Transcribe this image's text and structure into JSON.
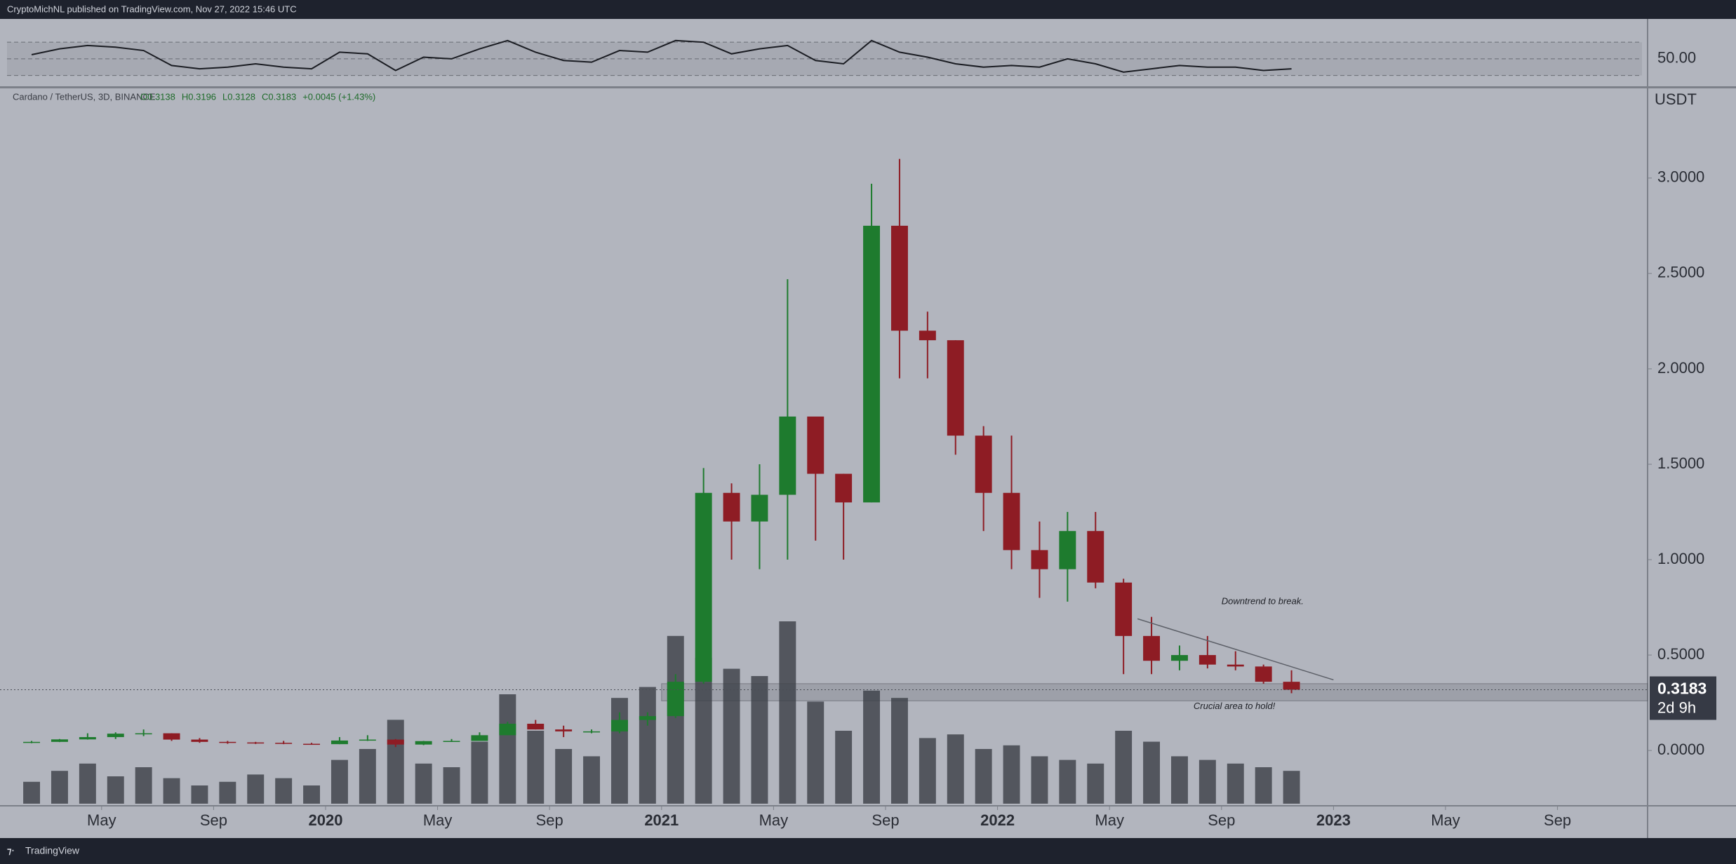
{
  "chart_data": {
    "type": "candlestick",
    "header": "CryptoMichNL published on TradingView.com, Nov 27, 2022 15:46 UTC",
    "title": "Cardano / TetherUS, 3D, BINANCE",
    "ohlc_legend": [
      "O0.3138",
      "H0.3196",
      "L0.3128",
      "C0.3183",
      "+0.0045 (+1.43%)"
    ],
    "y_unit": "USDT",
    "footer": "TradingView",
    "x": [
      "2019-02",
      "2019-03",
      "2019-04",
      "2019-05",
      "2019-06",
      "2019-07",
      "2019-08",
      "2019-09",
      "2019-10",
      "2019-11",
      "2019-12",
      "2020-01",
      "2020-02",
      "2020-03",
      "2020-04",
      "2020-05",
      "2020-06",
      "2020-07",
      "2020-08",
      "2020-09",
      "2020-10",
      "2020-11",
      "2020-12",
      "2021-01",
      "2021-02",
      "2021-03",
      "2021-04",
      "2021-05",
      "2021-06",
      "2021-07",
      "2021-08",
      "2021-09",
      "2021-10",
      "2021-11",
      "2021-12",
      "2022-01",
      "2022-02",
      "2022-03",
      "2022-04",
      "2022-05",
      "2022-06",
      "2022-07",
      "2022-08",
      "2022-09",
      "2022-10",
      "2022-11"
    ],
    "open": [
      0.04,
      0.045,
      0.058,
      0.07,
      0.088,
      0.09,
      0.057,
      0.045,
      0.042,
      0.04,
      0.035,
      0.033,
      0.052,
      0.057,
      0.031,
      0.049,
      0.05,
      0.08,
      0.14,
      0.11,
      0.1,
      0.1,
      0.16,
      0.18,
      0.36,
      1.35,
      1.2,
      1.34,
      1.75,
      1.45,
      1.3,
      2.75,
      2.2,
      2.15,
      1.65,
      1.35,
      1.05,
      0.95,
      1.15,
      0.88,
      0.6,
      0.47,
      0.5,
      0.45,
      0.44,
      0.36
    ],
    "high": [
      0.05,
      0.06,
      0.09,
      0.095,
      0.11,
      0.09,
      0.065,
      0.05,
      0.045,
      0.05,
      0.04,
      0.07,
      0.08,
      0.06,
      0.05,
      0.06,
      0.095,
      0.15,
      0.16,
      0.13,
      0.11,
      0.2,
      0.2,
      0.4,
      1.48,
      1.4,
      1.5,
      2.47,
      1.75,
      1.45,
      2.97,
      3.1,
      2.3,
      2.15,
      1.7,
      1.65,
      1.2,
      1.25,
      1.25,
      0.9,
      0.7,
      0.55,
      0.6,
      0.52,
      0.45,
      0.42
    ],
    "low": [
      0.038,
      0.044,
      0.057,
      0.06,
      0.075,
      0.05,
      0.04,
      0.035,
      0.034,
      0.033,
      0.03,
      0.033,
      0.05,
      0.018,
      0.028,
      0.045,
      0.05,
      0.08,
      0.11,
      0.07,
      0.09,
      0.09,
      0.13,
      0.17,
      0.35,
      1.0,
      0.95,
      1.0,
      1.1,
      1.0,
      1.3,
      1.95,
      1.95,
      1.55,
      1.15,
      0.95,
      0.8,
      0.78,
      0.85,
      0.4,
      0.4,
      0.42,
      0.43,
      0.42,
      0.35,
      0.3
    ],
    "close": [
      0.045,
      0.058,
      0.07,
      0.088,
      0.09,
      0.057,
      0.045,
      0.042,
      0.04,
      0.035,
      0.033,
      0.052,
      0.057,
      0.031,
      0.049,
      0.05,
      0.08,
      0.14,
      0.11,
      0.1,
      0.1,
      0.16,
      0.18,
      0.36,
      1.35,
      1.2,
      1.34,
      1.75,
      1.45,
      1.3,
      2.75,
      2.2,
      2.15,
      1.65,
      1.35,
      1.05,
      0.95,
      1.15,
      0.88,
      0.6,
      0.47,
      0.5,
      0.45,
      0.44,
      0.36,
      0.3183
    ],
    "volume": [
      12,
      18,
      22,
      15,
      20,
      14,
      10,
      12,
      16,
      14,
      10,
      24,
      30,
      46,
      22,
      20,
      34,
      60,
      40,
      30,
      26,
      58,
      64,
      92,
      80,
      74,
      70,
      100,
      56,
      40,
      62,
      58,
      36,
      38,
      30,
      32,
      26,
      24,
      22,
      40,
      34,
      26,
      24,
      22,
      20,
      18
    ],
    "up_color": "#1e7b2e",
    "down_color": "#8e1c24",
    "volume_color": "#3b3e46",
    "ylim": [
      -0.29,
      3.47
    ],
    "yticks": [
      {
        "value": 0,
        "label": "0.0000"
      },
      {
        "value": 0.5,
        "label": "0.5000"
      },
      {
        "value": 1,
        "label": "1.0000"
      },
      {
        "value": 1.5,
        "label": "1.5000"
      },
      {
        "value": 2,
        "label": "2.0000"
      },
      {
        "value": 2.5,
        "label": "2.5000"
      },
      {
        "value": 3,
        "label": "3.0000"
      }
    ],
    "xticks": [
      {
        "value": "2019-05",
        "label": "May"
      },
      {
        "value": "2019-09",
        "label": "Sep"
      },
      {
        "value": "2020-01",
        "label": "2020"
      },
      {
        "value": "2020-05",
        "label": "May"
      },
      {
        "value": "2020-09",
        "label": "Sep"
      },
      {
        "value": "2021-01",
        "label": "2021"
      },
      {
        "value": "2021-05",
        "label": "May"
      },
      {
        "value": "2021-09",
        "label": "Sep"
      },
      {
        "value": "2022-01",
        "label": "2022"
      },
      {
        "value": "2022-05",
        "label": "May"
      },
      {
        "value": "2022-09",
        "label": "Sep"
      },
      {
        "value": "2023-01",
        "label": "2023"
      },
      {
        "value": "2023-05",
        "label": "May"
      },
      {
        "value": "2023-09",
        "label": "Sep"
      }
    ],
    "last_price": 0.3183,
    "countdown": "2d 9h",
    "trendline": {
      "x": [
        "2022-06",
        "2023-01"
      ],
      "y": [
        0.69,
        0.37
      ]
    },
    "zone": {
      "x": "2021-01",
      "y": [
        0.26,
        0.35
      ]
    },
    "annotations": [
      {
        "text": "Downtrend to break.",
        "x": "2022-09",
        "y": 0.78
      },
      {
        "text": "Crucial area to hold!",
        "x": "2022-08",
        "y": 0.23
      }
    ],
    "rsi": {
      "values": [
        55,
        62,
        66,
        64,
        60,
        42,
        38,
        40,
        44,
        40,
        38,
        58,
        56,
        36,
        52,
        50,
        62,
        72,
        58,
        48,
        46,
        60,
        58,
        72,
        70,
        56,
        62,
        66,
        48,
        44,
        72,
        58,
        52,
        44,
        40,
        42,
        40,
        50,
        44,
        34,
        38,
        42,
        40,
        40,
        36,
        38
      ],
      "ylim": [
        17,
        98
      ],
      "yticks": [
        {
          "value": 50,
          "label": "50.00"
        }
      ],
      "band": [
        30,
        70
      ],
      "color": "#1a1c22"
    }
  }
}
